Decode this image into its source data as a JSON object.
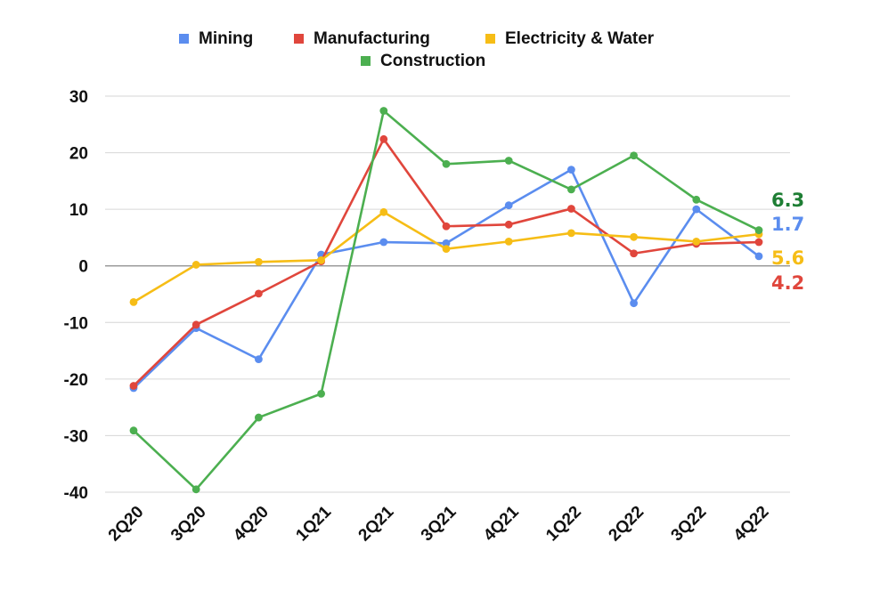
{
  "chart_data": {
    "type": "line",
    "categories": [
      "2Q20",
      "3Q20",
      "4Q20",
      "1Q21",
      "2Q21",
      "3Q21",
      "4Q21",
      "1Q22",
      "2Q22",
      "3Q22",
      "4Q22"
    ],
    "ylim": [
      -40,
      30
    ],
    "yticks": [
      30,
      20,
      10,
      0,
      -10,
      -20,
      -30,
      -40
    ],
    "grid": true,
    "legend_position": "top",
    "series": [
      {
        "name": "Mining",
        "color": "#5b8def",
        "values": [
          -21.6,
          -11,
          -16.5,
          2,
          4.2,
          4,
          10.7,
          17,
          -6.6,
          10,
          1.7
        ],
        "end_label": "1.7"
      },
      {
        "name": "Manufacturing",
        "color": "#e0463c",
        "values": [
          -21.2,
          -10.4,
          -4.9,
          0.8,
          22.4,
          7,
          7.3,
          10.1,
          2.2,
          3.9,
          4.2
        ],
        "end_label": "4.2"
      },
      {
        "name": "Electricity & Water",
        "color": "#f6bd16",
        "values": [
          -6.4,
          0.2,
          0.7,
          1.0,
          9.5,
          3.0,
          4.3,
          5.8,
          5.1,
          4.3,
          5.6
        ],
        "end_label": "5.6"
      },
      {
        "name": "Construction",
        "color": "#4caf50",
        "values": [
          -29.1,
          -39.5,
          -26.8,
          -22.6,
          27.4,
          18,
          18.6,
          13.5,
          19.5,
          11.7,
          6.3
        ],
        "end_label": "6.3",
        "end_label_color": "#1e7e34"
      }
    ]
  }
}
